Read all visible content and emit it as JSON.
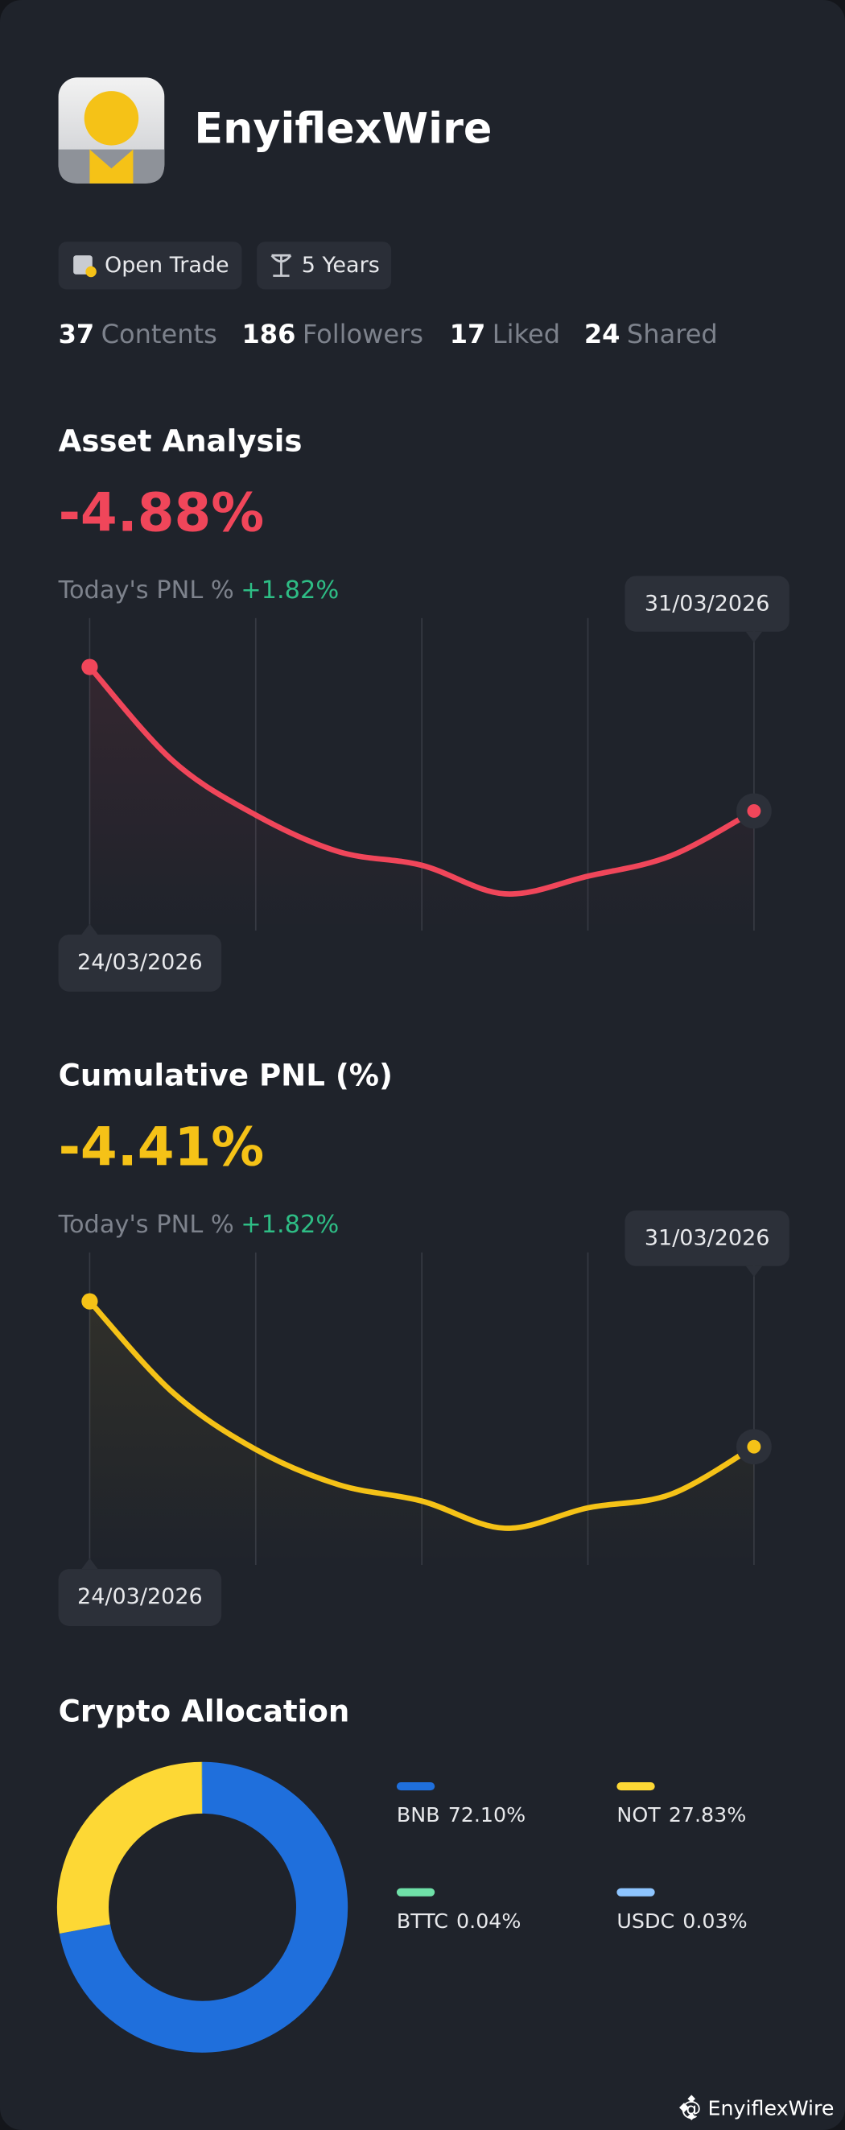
{
  "profile": {
    "name": "EnyiflexWire",
    "badges": [
      "Open Trade",
      "5 Years"
    ],
    "stats": [
      {
        "value": 37,
        "label": "Contents"
      },
      {
        "value": 186,
        "label": "Followers"
      },
      {
        "value": 17,
        "label": "Liked"
      },
      {
        "value": 24,
        "label": "Shared"
      }
    ]
  },
  "chart_data": [
    {
      "type": "line",
      "title": "Asset Analysis",
      "headline": "-4.88%",
      "subtitle": "Today's PNL %",
      "change": "+1.82%",
      "categories": [
        "24/03/2026",
        null,
        null,
        null,
        null,
        null,
        null,
        null,
        "31/03/2026"
      ],
      "values": [
        194,
        125,
        85,
        58,
        48,
        27,
        40,
        55,
        88
      ],
      "ylim": [
        0,
        230
      ],
      "color": "#f0465a"
    },
    {
      "type": "line",
      "title": "Cumulative PNL (%)",
      "headline": "-4.41%",
      "subtitle": "Today's PNL %",
      "change": "+1.82%",
      "categories": [
        "24/03/2026",
        null,
        null,
        null,
        null,
        null,
        null,
        null,
        "31/03/2026"
      ],
      "values": [
        194,
        127,
        85,
        59,
        47,
        27,
        42,
        52,
        87
      ],
      "ylim": [
        0,
        230
      ],
      "color": "#f5c217"
    },
    {
      "type": "donut",
      "title": "Crypto Allocation",
      "categories": [
        "BNB",
        "NOT",
        "BTTC",
        "USDC"
      ],
      "values": [
        72.1,
        27.83,
        0.04,
        0.03
      ],
      "value_labels": [
        "72.10%",
        "27.83%",
        "0.04%",
        "0.03%"
      ],
      "colors": [
        "#1f6fdc",
        "#fdd835",
        "#6fe0a8",
        "#8ec5ff"
      ]
    }
  ],
  "footer": "@ EnyiflexWire"
}
